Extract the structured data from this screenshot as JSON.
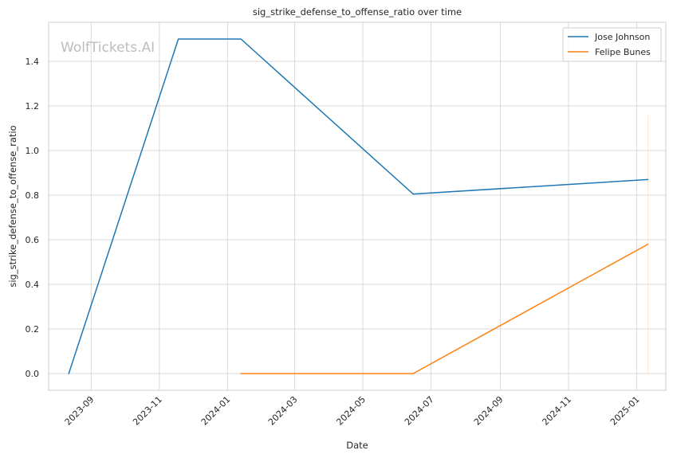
{
  "chart_data": {
    "type": "line",
    "title": "sig_strike_defense_to_offense_ratio over time",
    "xlabel": "Date",
    "ylabel": "sig_strike_defense_to_offense_ratio",
    "watermark": "WolfTickets.AI",
    "grid": true,
    "legend_position": "top-right",
    "x_ticks": [
      "2023-09",
      "2023-11",
      "2024-01",
      "2024-03",
      "2024-05",
      "2024-07",
      "2024-09",
      "2024-11",
      "2025-01"
    ],
    "y_ticks": [
      "0.0",
      "0.2",
      "0.4",
      "0.6",
      "0.8",
      "1.0",
      "1.2",
      "1.4"
    ],
    "xlim": [
      "2023-07-25",
      "2025-01-27"
    ],
    "ylim": [
      -0.075,
      1.575
    ],
    "series": [
      {
        "name": "Jose Johnson",
        "color": "#1f77b4",
        "points": [
          {
            "x": "2023-08-12",
            "y": 0.0
          },
          {
            "x": "2023-11-18",
            "y": 1.5
          },
          {
            "x": "2024-01-13",
            "y": 1.5
          },
          {
            "x": "2024-06-15",
            "y": 0.805
          },
          {
            "x": "2025-01-11",
            "y": 0.87
          }
        ]
      },
      {
        "name": "Felipe Bunes",
        "color": "#ff7f0e",
        "points": [
          {
            "x": "2024-01-13",
            "y": 0.0
          },
          {
            "x": "2024-06-15",
            "y": 0.0
          },
          {
            "x": "2025-01-11",
            "y": 0.58
          }
        ]
      }
    ]
  }
}
